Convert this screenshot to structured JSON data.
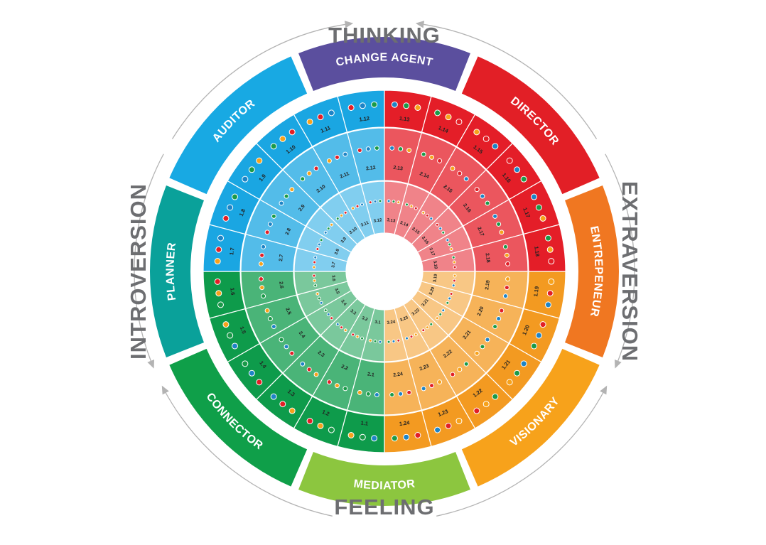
{
  "axes": {
    "top": "THINKING",
    "bottom": "FEELING",
    "left": "INTROVERSION",
    "right": "EXTRAVERSION"
  },
  "types": [
    {
      "name": "CHANGE AGENT",
      "color": "#5b4f9e"
    },
    {
      "name": "DIRECTOR",
      "color": "#e21f26"
    },
    {
      "name": "ENTREPENEUR",
      "color": "#f07721"
    },
    {
      "name": "VISIONARY",
      "color": "#f7a21b"
    },
    {
      "name": "MEDIATOR",
      "color": "#8cc63f"
    },
    {
      "name": "CONNECTOR",
      "color": "#0f9f49"
    },
    {
      "name": "PLANNER",
      "color": "#0aa19a"
    },
    {
      "name": "AUDITOR",
      "color": "#18a9e3"
    }
  ],
  "quadrant_colors": {
    "red": "#e41e28",
    "orange": "#f39a21",
    "green": "#0e9b4b",
    "blue": "#1aa6e2"
  },
  "dot_colors": [
    "#1d84c6",
    "#1a9a48",
    "#f7a21b",
    "#e21f26"
  ],
  "rings": {
    "outer": [
      "1.1",
      "1.2",
      "1.3",
      "1.4",
      "1.5",
      "1.6",
      "1.7",
      "1.8",
      "1.9",
      "1.10",
      "1.11",
      "1.12",
      "1.13",
      "1.14",
      "1.15",
      "1.16",
      "1.17",
      "1.18",
      "1.19",
      "1.20",
      "1.21",
      "1.22",
      "1.23",
      "1.24"
    ],
    "middle": [
      "2.1",
      "2.2",
      "2.3",
      "2.4",
      "2.5",
      "2.6",
      "2.7",
      "2.8",
      "2.9",
      "2.10",
      "2.11",
      "2.12",
      "2.13",
      "2.14",
      "2.15",
      "2.16",
      "2.17",
      "2.18",
      "2.19",
      "2.20",
      "2.21",
      "2.22",
      "2.23",
      "2.24"
    ],
    "inner": [
      "3.1",
      "3.2",
      "3.3",
      "3.4",
      "3.5",
      "3.6",
      "3.7",
      "3.8",
      "3.9",
      "3.10",
      "3.11",
      "3.12",
      "3.13",
      "3.14",
      "3.15",
      "3.16",
      "3.17",
      "3.18",
      "3.19",
      "3.20",
      "3.21",
      "3.22",
      "3.23",
      "3.24"
    ]
  }
}
